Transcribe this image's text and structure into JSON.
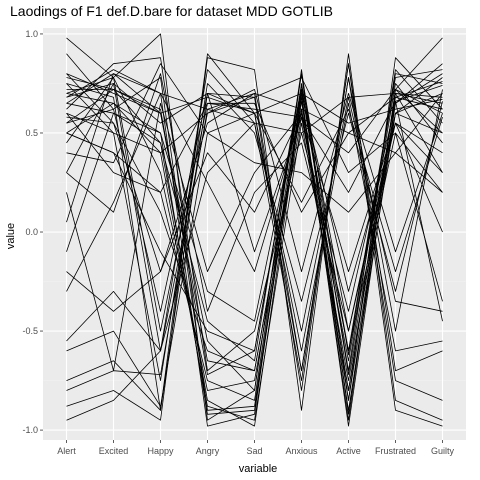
{
  "chart_data": {
    "type": "line",
    "title": "Laodings of F1 def.D.bare for dataset MDD GOTLIB",
    "xlabel": "variable",
    "ylabel": "value",
    "categories": [
      "Alert",
      "Excited",
      "Happy",
      "Angry",
      "Sad",
      "Anxious",
      "Active",
      "Frustrated",
      "Guilty"
    ],
    "y_ticks": [
      "1.0",
      "0.5",
      "0.0",
      "-0.5",
      "-1.0"
    ],
    "ylim": [
      -1.05,
      1.03
    ],
    "grid": true,
    "legend": "none",
    "colors": {
      "panel": "#ebebeb",
      "grid_major": "#ffffff",
      "grid_minor": "#f2f2f2",
      "line": "#000000"
    },
    "series": [
      {
        "values": [
          0.98,
          0.78,
          1.0,
          -0.95,
          -0.8,
          0.8,
          -0.92,
          0.72,
          0.98
        ]
      },
      {
        "values": [
          0.9,
          0.62,
          0.78,
          -0.9,
          -0.88,
          0.7,
          -0.98,
          0.65,
          0.85
        ]
      },
      {
        "values": [
          0.8,
          0.7,
          0.6,
          -0.65,
          -0.7,
          0.62,
          -0.85,
          0.88,
          0.62
        ]
      },
      {
        "values": [
          0.75,
          0.5,
          0.4,
          -0.88,
          -0.95,
          0.55,
          -0.75,
          0.6,
          0.7
        ]
      },
      {
        "values": [
          0.7,
          0.65,
          0.5,
          -0.92,
          -0.9,
          0.68,
          -0.95,
          0.72,
          0.6
        ]
      },
      {
        "values": [
          0.65,
          0.8,
          0.7,
          -0.98,
          -0.92,
          0.72,
          -0.6,
          0.8,
          0.75
        ]
      },
      {
        "values": [
          0.6,
          0.3,
          0.2,
          -0.75,
          -0.85,
          0.75,
          -0.5,
          0.55,
          0.4
        ]
      },
      {
        "values": [
          0.58,
          0.55,
          0.1,
          -0.6,
          -0.7,
          0.62,
          -0.8,
          0.7,
          0.65
        ]
      },
      {
        "values": [
          0.55,
          0.72,
          0.45,
          -0.85,
          -0.98,
          0.66,
          -0.9,
          0.6,
          0.78
        ]
      },
      {
        "values": [
          0.5,
          0.4,
          -0.1,
          -0.5,
          -0.6,
          0.72,
          -0.7,
          0.82,
          0.55
        ]
      },
      {
        "values": [
          0.45,
          0.78,
          0.3,
          -0.8,
          -0.75,
          0.58,
          -0.65,
          0.75,
          0.45
        ]
      },
      {
        "values": [
          0.62,
          0.85,
          0.88,
          -0.7,
          -0.5,
          0.5,
          -0.4,
          0.65,
          0.8
        ]
      },
      {
        "values": [
          0.05,
          0.8,
          0.6,
          -0.55,
          -0.8,
          0.82,
          -0.85,
          0.66,
          -0.45
        ]
      },
      {
        "values": [
          -0.1,
          0.6,
          0.5,
          -0.3,
          -0.45,
          0.7,
          -0.3,
          0.55,
          0.3
        ]
      },
      {
        "values": [
          -0.55,
          -0.3,
          -0.6,
          0.3,
          0.55,
          -0.5,
          0.68,
          -0.35,
          -0.4
        ]
      },
      {
        "values": [
          -0.75,
          -0.65,
          -0.9,
          0.7,
          0.68,
          -0.8,
          0.85,
          -0.9,
          -0.98
        ]
      },
      {
        "values": [
          -0.8,
          -0.7,
          -0.72,
          0.62,
          0.7,
          -0.7,
          0.78,
          -0.75,
          -0.85
        ]
      },
      {
        "values": [
          -0.95,
          -0.85,
          -0.6,
          0.82,
          0.55,
          -0.75,
          0.85,
          -0.7,
          -0.6
        ]
      },
      {
        "values": [
          -0.88,
          -0.8,
          -0.95,
          0.88,
          0.82,
          -0.9,
          0.9,
          -0.85,
          -0.95
        ]
      },
      {
        "values": [
          -0.6,
          -0.5,
          -0.88,
          0.5,
          0.6,
          -0.6,
          0.65,
          -0.6,
          -0.55
        ]
      },
      {
        "values": [
          0.2,
          -0.7,
          0.65,
          -0.2,
          0.3,
          0.6,
          -0.6,
          0.5,
          -0.35
        ]
      },
      {
        "values": [
          0.3,
          0.1,
          0.8,
          -0.4,
          0.2,
          0.45,
          -0.5,
          0.6,
          0.5
        ]
      },
      {
        "values": [
          0.68,
          0.75,
          -0.6,
          0.6,
          0.72,
          -0.2,
          0.7,
          -0.1,
          0.6
        ]
      },
      {
        "values": [
          0.75,
          0.68,
          -0.9,
          0.9,
          0.6,
          -0.7,
          0.78,
          -0.5,
          0.72
        ]
      },
      {
        "values": [
          0.6,
          0.5,
          -0.75,
          0.75,
          0.5,
          -0.35,
          0.6,
          -0.3,
          0.66
        ]
      },
      {
        "values": [
          0.7,
          0.78,
          -0.5,
          0.65,
          0.65,
          0.1,
          0.5,
          0.4,
          0.7
        ]
      },
      {
        "values": [
          0.55,
          0.62,
          -0.4,
          0.7,
          0.6,
          0.15,
          0.62,
          -0.2,
          0.58
        ]
      },
      {
        "values": [
          0.4,
          0.35,
          0.85,
          0.5,
          0.35,
          0.3,
          0.1,
          0.4,
          0.2
        ]
      },
      {
        "values": [
          -0.3,
          0.15,
          0.7,
          0.25,
          -0.2,
          0.6,
          -0.8,
          0.7,
          0.3
        ]
      },
      {
        "values": [
          0.78,
          0.72,
          0.6,
          0.68,
          0.6,
          0.7,
          0.55,
          0.62,
          0.67
        ]
      },
      {
        "values": [
          0.8,
          0.55,
          -0.2,
          0.55,
          0.7,
          0.62,
          0.5,
          0.68,
          0.62
        ]
      },
      {
        "values": [
          0.5,
          0.65,
          0.4,
          0.6,
          0.68,
          0.78,
          0.3,
          0.5,
          0.2
        ]
      },
      {
        "values": [
          0.68,
          0.82,
          0.7,
          0.62,
          0.55,
          0.5,
          0.68,
          0.7,
          0.68
        ]
      },
      {
        "values": [
          0.3,
          0.75,
          0.55,
          0.7,
          -0.1,
          0.58,
          0.4,
          0.72,
          0.5
        ]
      },
      {
        "values": [
          0.5,
          0.4,
          0.2,
          0.65,
          0.62,
          0.58,
          0.2,
          0.66,
          0.74
        ]
      },
      {
        "values": [
          -0.2,
          -0.4,
          -0.2,
          0.4,
          0.1,
          0.6,
          -0.2,
          0.55,
          0.0
        ]
      },
      {
        "values": [
          0.65,
          0.6,
          0.45,
          -0.45,
          -0.65,
          0.8,
          -0.62,
          0.78,
          0.82
        ]
      },
      {
        "values": [
          0.72,
          0.72,
          0.62,
          -0.72,
          -0.6,
          0.74,
          -0.72,
          0.68,
          0.76
        ]
      }
    ]
  }
}
